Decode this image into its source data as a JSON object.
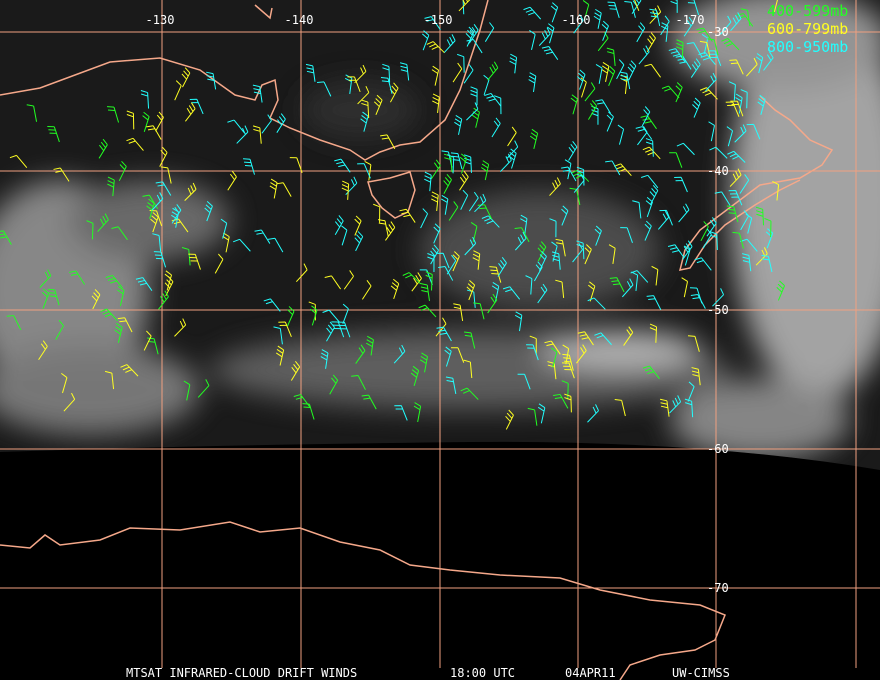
{
  "longitude_labels": [
    "-130",
    "-140",
    "-150",
    "-160",
    "-170"
  ],
  "latitude_labels": [
    "-30",
    "-40",
    "-50",
    "-60",
    "-70"
  ],
  "legend": [
    "400-599mb",
    "600-799mb",
    "800-950mb"
  ],
  "footer": {
    "product": "MTSAT INFRARED-CLOUD DRIFT WINDS",
    "time": "18:00 UTC",
    "date": "04APR11",
    "source": "UW-CIMSS"
  }
}
